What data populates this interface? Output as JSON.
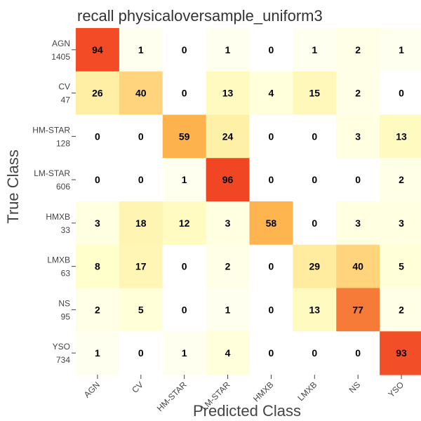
{
  "chart_data": {
    "type": "heatmap",
    "title": "recall physicaloversample_uniform3",
    "xlabel": "Predicted Class",
    "ylabel": "True Class",
    "x_categories": [
      "AGN",
      "CV",
      "HM-STAR",
      "LM-STAR",
      "HMXB",
      "LMXB",
      "NS",
      "YSO"
    ],
    "y_categories": [
      "AGN",
      "CV",
      "HM-STAR",
      "LM-STAR",
      "HMXB",
      "LMXB",
      "NS",
      "YSO"
    ],
    "row_counts": [
      "1405",
      "47",
      "128",
      "606",
      "33",
      "63",
      "95",
      "734"
    ],
    "values": [
      [
        94,
        1,
        0,
        1,
        0,
        1,
        2,
        1
      ],
      [
        26,
        40,
        0,
        13,
        4,
        15,
        2,
        0
      ],
      [
        0,
        0,
        59,
        24,
        0,
        0,
        3,
        13
      ],
      [
        0,
        0,
        1,
        96,
        0,
        0,
        0,
        2
      ],
      [
        3,
        18,
        12,
        3,
        58,
        0,
        3,
        3
      ],
      [
        8,
        17,
        0,
        2,
        0,
        29,
        40,
        5
      ],
      [
        2,
        5,
        0,
        1,
        0,
        13,
        77,
        2
      ],
      [
        1,
        0,
        1,
        4,
        0,
        0,
        0,
        93
      ]
    ],
    "value_range": [
      0,
      100
    ],
    "colormap": [
      "#ffffff",
      "#ffffcc",
      "#ffeda0",
      "#feb24c",
      "#f03b20"
    ]
  }
}
